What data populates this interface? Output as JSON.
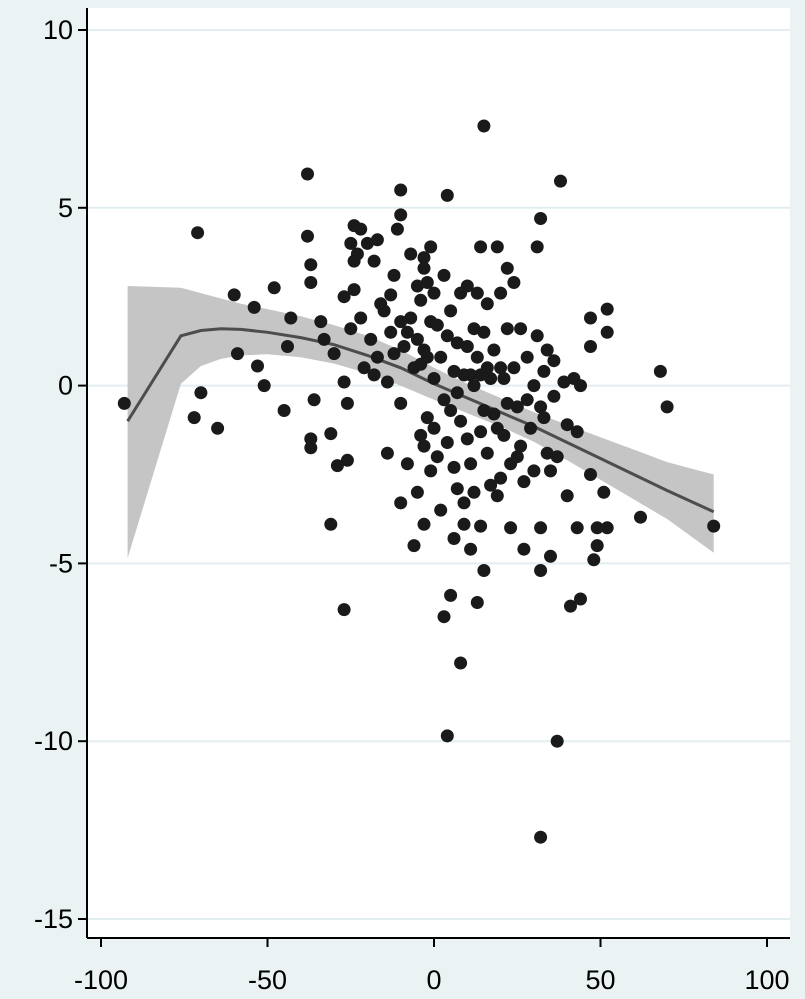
{
  "chart_data": {
    "type": "scatter",
    "title": "",
    "xlabel": "",
    "ylabel": "",
    "xlim": [
      -100,
      100
    ],
    "ylim": [
      -15.5,
      10.5
    ],
    "xticks": [
      -100,
      -50,
      0,
      50,
      100
    ],
    "yticks": [
      10,
      5,
      0,
      -5,
      -10,
      -15
    ],
    "xtick_labels": [
      "-100",
      "-50",
      "0",
      "50",
      "100"
    ],
    "ytick_labels": [
      "10",
      "5",
      "0",
      "-5",
      "-10",
      "-15"
    ],
    "grid": "horizontal",
    "colors": {
      "background": "#eaf2f3",
      "plot_area": "#ffffff",
      "gridline": "#e2eef0",
      "points": "#1a1a1a",
      "band": "#c0c0c0",
      "fit_line": "#4d4d4d"
    },
    "fit": {
      "x": [
        -92,
        -76,
        -70,
        -64,
        -58,
        -50,
        -40,
        -30,
        -20,
        -10,
        0,
        10,
        20,
        30,
        40,
        50,
        60,
        70,
        84
      ],
      "y": [
        -1.0,
        1.4,
        1.55,
        1.6,
        1.58,
        1.5,
        1.35,
        1.15,
        0.85,
        0.5,
        0.05,
        -0.35,
        -0.75,
        -1.15,
        -1.6,
        -2.05,
        -2.5,
        -2.95,
        -3.55
      ],
      "upper": [
        2.8,
        2.75,
        2.6,
        2.45,
        2.3,
        2.15,
        1.95,
        1.7,
        1.4,
        1.0,
        0.5,
        0.05,
        -0.35,
        -0.75,
        -1.1,
        -1.45,
        -1.8,
        -2.15,
        -2.5
      ],
      "lower": [
        -4.85,
        0.05,
        0.55,
        0.75,
        0.85,
        0.88,
        0.8,
        0.62,
        0.35,
        0.0,
        -0.4,
        -0.78,
        -1.15,
        -1.58,
        -2.1,
        -2.65,
        -3.2,
        -3.75,
        -4.7
      ]
    },
    "series": [
      {
        "points": [
          [
            -93,
            -0.5
          ],
          [
            -71,
            4.3
          ],
          [
            -70,
            -0.2
          ],
          [
            -72,
            -0.9
          ],
          [
            -65,
            -1.2
          ],
          [
            -60,
            2.55
          ],
          [
            -59,
            0.9
          ],
          [
            -54,
            2.2
          ],
          [
            -53,
            0.55
          ],
          [
            -51,
            0.0
          ],
          [
            -48,
            2.75
          ],
          [
            -45,
            -0.7
          ],
          [
            -44,
            1.1
          ],
          [
            -43,
            1.9
          ],
          [
            -38,
            5.95
          ],
          [
            -38,
            4.2
          ],
          [
            -37,
            3.4
          ],
          [
            -37,
            2.9
          ],
          [
            -37,
            -1.5
          ],
          [
            -37,
            -1.75
          ],
          [
            -36,
            -0.4
          ],
          [
            -34,
            1.8
          ],
          [
            -33,
            1.3
          ],
          [
            -31,
            -3.9
          ],
          [
            -31,
            -1.35
          ],
          [
            -30,
            0.9
          ],
          [
            -29,
            -2.25
          ],
          [
            -27,
            -6.3
          ],
          [
            -27,
            2.5
          ],
          [
            -27,
            0.1
          ],
          [
            -26,
            -0.5
          ],
          [
            -26,
            -2.1
          ],
          [
            -25,
            4.0
          ],
          [
            -25,
            1.6
          ],
          [
            -24,
            4.5
          ],
          [
            -24,
            3.5
          ],
          [
            -24,
            2.7
          ],
          [
            -23,
            3.7
          ],
          [
            -22,
            4.4
          ],
          [
            -22,
            1.9
          ],
          [
            -21,
            0.5
          ],
          [
            -20,
            4.0
          ],
          [
            -19,
            1.3
          ],
          [
            -18,
            3.5
          ],
          [
            -18,
            0.3
          ],
          [
            -17,
            4.1
          ],
          [
            -17,
            0.8
          ],
          [
            -16,
            2.3
          ],
          [
            -15,
            2.1
          ],
          [
            -14,
            0.1
          ],
          [
            -14,
            -1.9
          ],
          [
            -13,
            2.55
          ],
          [
            -13,
            1.5
          ],
          [
            -12,
            3.1
          ],
          [
            -12,
            0.9
          ],
          [
            -11,
            4.4
          ],
          [
            -10,
            4.8
          ],
          [
            -10,
            5.5
          ],
          [
            -10,
            1.8
          ],
          [
            -10,
            -0.5
          ],
          [
            -10,
            -3.3
          ],
          [
            -9,
            1.1
          ],
          [
            -8,
            1.5
          ],
          [
            -8,
            -2.2
          ],
          [
            -7,
            3.7
          ],
          [
            -7,
            1.9
          ],
          [
            -6,
            0.5
          ],
          [
            -6,
            -4.5
          ],
          [
            -5,
            2.8
          ],
          [
            -5,
            1.3
          ],
          [
            -5,
            -3.0
          ],
          [
            -4,
            2.4
          ],
          [
            -4,
            0.6
          ],
          [
            -4,
            -1.4
          ],
          [
            -3,
            3.6
          ],
          [
            -3,
            3.3
          ],
          [
            -3,
            1.0
          ],
          [
            -3,
            -1.7
          ],
          [
            -3,
            -3.9
          ],
          [
            -2,
            2.9
          ],
          [
            -2,
            0.8
          ],
          [
            -2,
            -0.9
          ],
          [
            -1,
            3.9
          ],
          [
            -1,
            1.8
          ],
          [
            -1,
            -2.4
          ],
          [
            0,
            2.6
          ],
          [
            0,
            0.2
          ],
          [
            0,
            -1.2
          ],
          [
            1,
            1.7
          ],
          [
            1,
            -2.0
          ],
          [
            2,
            0.8
          ],
          [
            2,
            -3.5
          ],
          [
            3,
            3.1
          ],
          [
            3,
            -0.4
          ],
          [
            3,
            -6.5
          ],
          [
            4,
            5.35
          ],
          [
            4,
            1.4
          ],
          [
            4,
            -1.6
          ],
          [
            4,
            -9.85
          ],
          [
            5,
            2.1
          ],
          [
            5,
            -0.7
          ],
          [
            5,
            -5.9
          ],
          [
            6,
            0.4
          ],
          [
            6,
            -2.3
          ],
          [
            6,
            -4.3
          ],
          [
            7,
            1.2
          ],
          [
            7,
            -0.2
          ],
          [
            7,
            -2.9
          ],
          [
            8,
            2.6
          ],
          [
            8,
            -1.0
          ],
          [
            8,
            -7.8
          ],
          [
            9,
            0.3
          ],
          [
            9,
            -3.3
          ],
          [
            9,
            -3.9
          ],
          [
            10,
            2.8
          ],
          [
            10,
            1.1
          ],
          [
            10,
            -1.5
          ],
          [
            11,
            0.3
          ],
          [
            11,
            -2.2
          ],
          [
            11,
            -4.6
          ],
          [
            12,
            1.6
          ],
          [
            12,
            0.0
          ],
          [
            12,
            -3.0
          ],
          [
            13,
            2.6
          ],
          [
            13,
            0.8
          ],
          [
            13,
            -6.1
          ],
          [
            14,
            3.9
          ],
          [
            14,
            0.3
          ],
          [
            14,
            -1.3
          ],
          [
            14,
            -3.95
          ],
          [
            15,
            7.3
          ],
          [
            15,
            1.5
          ],
          [
            15,
            -0.7
          ],
          [
            15,
            -5.2
          ],
          [
            16,
            2.3
          ],
          [
            16,
            0.5
          ],
          [
            16,
            -1.9
          ],
          [
            17,
            0.2
          ],
          [
            17,
            -2.8
          ],
          [
            18,
            1.0
          ],
          [
            18,
            -0.8
          ],
          [
            19,
            3.9
          ],
          [
            19,
            -1.2
          ],
          [
            19,
            -3.1
          ],
          [
            20,
            2.6
          ],
          [
            20,
            0.5
          ],
          [
            20,
            -2.6
          ],
          [
            21,
            0.2
          ],
          [
            21,
            -1.4
          ],
          [
            22,
            3.3
          ],
          [
            22,
            1.6
          ],
          [
            22,
            -0.5
          ],
          [
            23,
            -2.2
          ],
          [
            23,
            -4.0
          ],
          [
            24,
            2.9
          ],
          [
            24,
            0.5
          ],
          [
            25,
            -0.6
          ],
          [
            25,
            -2.0
          ],
          [
            26,
            1.6
          ],
          [
            26,
            -1.7
          ],
          [
            27,
            -4.6
          ],
          [
            27,
            -2.7
          ],
          [
            28,
            0.8
          ],
          [
            28,
            -0.4
          ],
          [
            29,
            -1.2
          ],
          [
            30,
            0.0
          ],
          [
            30,
            -2.4
          ],
          [
            31,
            3.9
          ],
          [
            31,
            1.4
          ],
          [
            32,
            4.7
          ],
          [
            32,
            -0.6
          ],
          [
            32,
            -4.0
          ],
          [
            32,
            -5.2
          ],
          [
            32,
            -12.7
          ],
          [
            33,
            0.4
          ],
          [
            33,
            -0.9
          ],
          [
            34,
            1.0
          ],
          [
            34,
            -1.9
          ],
          [
            35,
            -2.4
          ],
          [
            35,
            -4.8
          ],
          [
            36,
            0.7
          ],
          [
            36,
            -0.3
          ],
          [
            37,
            -2.0
          ],
          [
            37,
            -10.0
          ],
          [
            38,
            5.75
          ],
          [
            39,
            0.1
          ],
          [
            40,
            -1.1
          ],
          [
            40,
            -3.1
          ],
          [
            41,
            -6.2
          ],
          [
            42,
            0.2
          ],
          [
            43,
            -1.3
          ],
          [
            43,
            -4.0
          ],
          [
            44,
            0.0
          ],
          [
            44,
            -6.0
          ],
          [
            47,
            1.9
          ],
          [
            47,
            1.1
          ],
          [
            47,
            -2.5
          ],
          [
            48,
            -4.9
          ],
          [
            49,
            -4.0
          ],
          [
            49,
            -4.5
          ],
          [
            51,
            -3.0
          ],
          [
            52,
            2.15
          ],
          [
            52,
            1.5
          ],
          [
            52,
            -4.0
          ],
          [
            62,
            -3.7
          ],
          [
            68,
            0.4
          ],
          [
            70,
            -0.6
          ],
          [
            84,
            -3.95
          ]
        ]
      }
    ]
  }
}
